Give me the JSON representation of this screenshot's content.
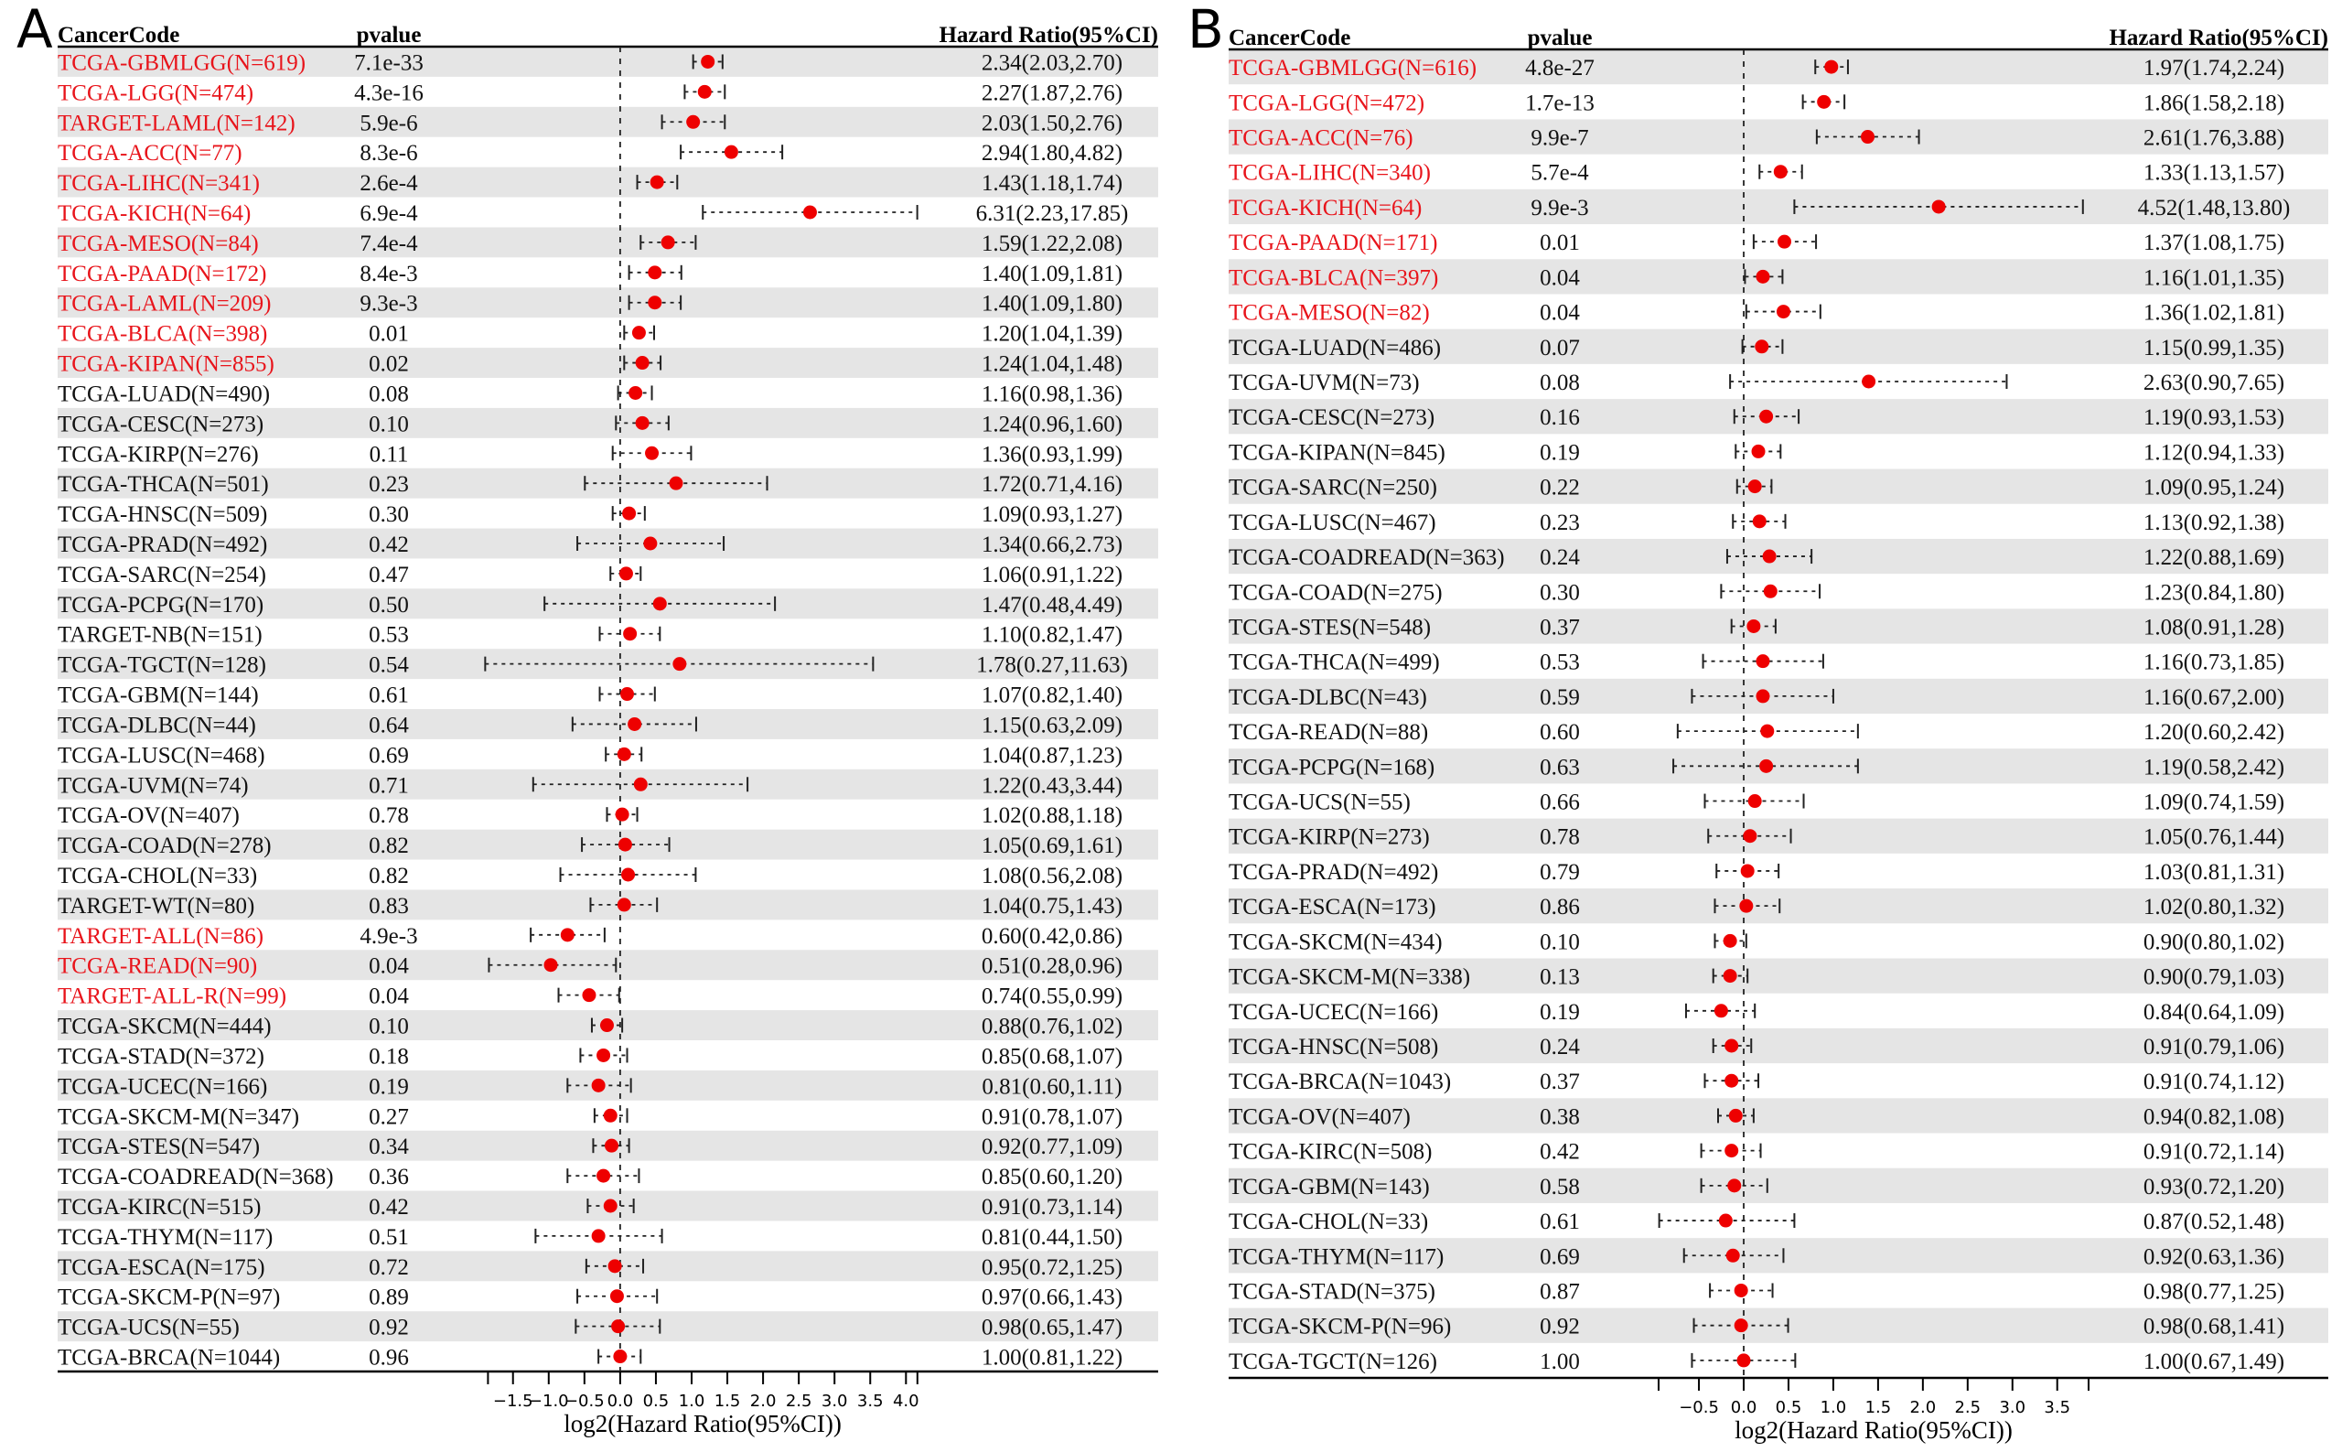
{
  "chart_data": [
    {
      "type": "forest",
      "panel_label": "A",
      "columns": {
        "code": "CancerCode",
        "pvalue": "pvalue",
        "hr": "Hazard Ratio(95%CI)"
      },
      "xlabel": "log2(Hazard Ratio(95%CI))",
      "xlim": [
        -1.85,
        4.16
      ],
      "xticks": [
        -1.5,
        -1.0,
        -0.5,
        0.0,
        0.5,
        1.0,
        1.5,
        2.0,
        2.5,
        3.0,
        3.5,
        4.0
      ],
      "xtick_labels": [
        "−1.5",
        "−1.0",
        "−0.5",
        "0.0",
        "0.5",
        "1.0",
        "1.5",
        "2.0",
        "2.5",
        "3.0",
        "3.5",
        "4.0"
      ],
      "reference_line": 0,
      "significant_color": "#e8141b",
      "point_color": "#ee0000",
      "band_color": "#e5e5e5",
      "rows": [
        {
          "code": "TCGA-GBMLGG(N=619)",
          "pvalue": "7.1e-33",
          "hr": 2.34,
          "lo": 2.03,
          "hi": 2.7,
          "label": "2.34(2.03,2.70)",
          "sig": true
        },
        {
          "code": "TCGA-LGG(N=474)",
          "pvalue": "4.3e-16",
          "hr": 2.27,
          "lo": 1.87,
          "hi": 2.76,
          "label": "2.27(1.87,2.76)",
          "sig": true
        },
        {
          "code": "TARGET-LAML(N=142)",
          "pvalue": "5.9e-6",
          "hr": 2.03,
          "lo": 1.5,
          "hi": 2.76,
          "label": "2.03(1.50,2.76)",
          "sig": true
        },
        {
          "code": "TCGA-ACC(N=77)",
          "pvalue": "8.3e-6",
          "hr": 2.94,
          "lo": 1.8,
          "hi": 4.82,
          "label": "2.94(1.80,4.82)",
          "sig": true
        },
        {
          "code": "TCGA-LIHC(N=341)",
          "pvalue": "2.6e-4",
          "hr": 1.43,
          "lo": 1.18,
          "hi": 1.74,
          "label": "1.43(1.18,1.74)",
          "sig": true
        },
        {
          "code": "TCGA-KICH(N=64)",
          "pvalue": "6.9e-4",
          "hr": 6.31,
          "lo": 2.23,
          "hi": 17.85,
          "label": "6.31(2.23,17.85)",
          "sig": true
        },
        {
          "code": "TCGA-MESO(N=84)",
          "pvalue": "7.4e-4",
          "hr": 1.59,
          "lo": 1.22,
          "hi": 2.08,
          "label": "1.59(1.22,2.08)",
          "sig": true
        },
        {
          "code": "TCGA-PAAD(N=172)",
          "pvalue": "8.4e-3",
          "hr": 1.4,
          "lo": 1.09,
          "hi": 1.81,
          "label": "1.40(1.09,1.81)",
          "sig": true
        },
        {
          "code": "TCGA-LAML(N=209)",
          "pvalue": "9.3e-3",
          "hr": 1.4,
          "lo": 1.09,
          "hi": 1.8,
          "label": "1.40(1.09,1.80)",
          "sig": true
        },
        {
          "code": "TCGA-BLCA(N=398)",
          "pvalue": "0.01",
          "hr": 1.2,
          "lo": 1.04,
          "hi": 1.39,
          "label": "1.20(1.04,1.39)",
          "sig": true
        },
        {
          "code": "TCGA-KIPAN(N=855)",
          "pvalue": "0.02",
          "hr": 1.24,
          "lo": 1.04,
          "hi": 1.48,
          "label": "1.24(1.04,1.48)",
          "sig": true
        },
        {
          "code": "TCGA-LUAD(N=490)",
          "pvalue": "0.08",
          "hr": 1.16,
          "lo": 0.98,
          "hi": 1.36,
          "label": "1.16(0.98,1.36)",
          "sig": false
        },
        {
          "code": "TCGA-CESC(N=273)",
          "pvalue": "0.10",
          "hr": 1.24,
          "lo": 0.96,
          "hi": 1.6,
          "label": "1.24(0.96,1.60)",
          "sig": false
        },
        {
          "code": "TCGA-KIRP(N=276)",
          "pvalue": "0.11",
          "hr": 1.36,
          "lo": 0.93,
          "hi": 1.99,
          "label": "1.36(0.93,1.99)",
          "sig": false
        },
        {
          "code": "TCGA-THCA(N=501)",
          "pvalue": "0.23",
          "hr": 1.72,
          "lo": 0.71,
          "hi": 4.16,
          "label": "1.72(0.71,4.16)",
          "sig": false
        },
        {
          "code": "TCGA-HNSC(N=509)",
          "pvalue": "0.30",
          "hr": 1.09,
          "lo": 0.93,
          "hi": 1.27,
          "label": "1.09(0.93,1.27)",
          "sig": false
        },
        {
          "code": "TCGA-PRAD(N=492)",
          "pvalue": "0.42",
          "hr": 1.34,
          "lo": 0.66,
          "hi": 2.73,
          "label": "1.34(0.66,2.73)",
          "sig": false
        },
        {
          "code": "TCGA-SARC(N=254)",
          "pvalue": "0.47",
          "hr": 1.06,
          "lo": 0.91,
          "hi": 1.22,
          "label": "1.06(0.91,1.22)",
          "sig": false
        },
        {
          "code": "TCGA-PCPG(N=170)",
          "pvalue": "0.50",
          "hr": 1.47,
          "lo": 0.48,
          "hi": 4.49,
          "label": "1.47(0.48,4.49)",
          "sig": false
        },
        {
          "code": "TARGET-NB(N=151)",
          "pvalue": "0.53",
          "hr": 1.1,
          "lo": 0.82,
          "hi": 1.47,
          "label": "1.10(0.82,1.47)",
          "sig": false
        },
        {
          "code": "TCGA-TGCT(N=128)",
          "pvalue": "0.54",
          "hr": 1.78,
          "lo": 0.27,
          "hi": 11.63,
          "label": "1.78(0.27,11.63)",
          "sig": false
        },
        {
          "code": "TCGA-GBM(N=144)",
          "pvalue": "0.61",
          "hr": 1.07,
          "lo": 0.82,
          "hi": 1.4,
          "label": "1.07(0.82,1.40)",
          "sig": false
        },
        {
          "code": "TCGA-DLBC(N=44)",
          "pvalue": "0.64",
          "hr": 1.15,
          "lo": 0.63,
          "hi": 2.09,
          "label": "1.15(0.63,2.09)",
          "sig": false
        },
        {
          "code": "TCGA-LUSC(N=468)",
          "pvalue": "0.69",
          "hr": 1.04,
          "lo": 0.87,
          "hi": 1.23,
          "label": "1.04(0.87,1.23)",
          "sig": false
        },
        {
          "code": "TCGA-UVM(N=74)",
          "pvalue": "0.71",
          "hr": 1.22,
          "lo": 0.43,
          "hi": 3.44,
          "label": "1.22(0.43,3.44)",
          "sig": false
        },
        {
          "code": "TCGA-OV(N=407)",
          "pvalue": "0.78",
          "hr": 1.02,
          "lo": 0.88,
          "hi": 1.18,
          "label": "1.02(0.88,1.18)",
          "sig": false
        },
        {
          "code": "TCGA-COAD(N=278)",
          "pvalue": "0.82",
          "hr": 1.05,
          "lo": 0.69,
          "hi": 1.61,
          "label": "1.05(0.69,1.61)",
          "sig": false
        },
        {
          "code": "TCGA-CHOL(N=33)",
          "pvalue": "0.82",
          "hr": 1.08,
          "lo": 0.56,
          "hi": 2.08,
          "label": "1.08(0.56,2.08)",
          "sig": false
        },
        {
          "code": "TARGET-WT(N=80)",
          "pvalue": "0.83",
          "hr": 1.04,
          "lo": 0.75,
          "hi": 1.43,
          "label": "1.04(0.75,1.43)",
          "sig": false
        },
        {
          "code": "TARGET-ALL(N=86)",
          "pvalue": "4.9e-3",
          "hr": 0.6,
          "lo": 0.42,
          "hi": 0.86,
          "label": "0.60(0.42,0.86)",
          "sig": true
        },
        {
          "code": "TCGA-READ(N=90)",
          "pvalue": "0.04",
          "hr": 0.51,
          "lo": 0.28,
          "hi": 0.96,
          "label": "0.51(0.28,0.96)",
          "sig": true
        },
        {
          "code": "TARGET-ALL-R(N=99)",
          "pvalue": "0.04",
          "hr": 0.74,
          "lo": 0.55,
          "hi": 0.99,
          "label": "0.74(0.55,0.99)",
          "sig": true
        },
        {
          "code": "TCGA-SKCM(N=444)",
          "pvalue": "0.10",
          "hr": 0.88,
          "lo": 0.76,
          "hi": 1.02,
          "label": "0.88(0.76,1.02)",
          "sig": false
        },
        {
          "code": "TCGA-STAD(N=372)",
          "pvalue": "0.18",
          "hr": 0.85,
          "lo": 0.68,
          "hi": 1.07,
          "label": "0.85(0.68,1.07)",
          "sig": false
        },
        {
          "code": "TCGA-UCEC(N=166)",
          "pvalue": "0.19",
          "hr": 0.81,
          "lo": 0.6,
          "hi": 1.11,
          "label": "0.81(0.60,1.11)",
          "sig": false
        },
        {
          "code": "TCGA-SKCM-M(N=347)",
          "pvalue": "0.27",
          "hr": 0.91,
          "lo": 0.78,
          "hi": 1.07,
          "label": "0.91(0.78,1.07)",
          "sig": false
        },
        {
          "code": "TCGA-STES(N=547)",
          "pvalue": "0.34",
          "hr": 0.92,
          "lo": 0.77,
          "hi": 1.09,
          "label": "0.92(0.77,1.09)",
          "sig": false
        },
        {
          "code": "TCGA-COADREAD(N=368)",
          "pvalue": "0.36",
          "hr": 0.85,
          "lo": 0.6,
          "hi": 1.2,
          "label": "0.85(0.60,1.20)",
          "sig": false
        },
        {
          "code": "TCGA-KIRC(N=515)",
          "pvalue": "0.42",
          "hr": 0.91,
          "lo": 0.73,
          "hi": 1.14,
          "label": "0.91(0.73,1.14)",
          "sig": false
        },
        {
          "code": "TCGA-THYM(N=117)",
          "pvalue": "0.51",
          "hr": 0.81,
          "lo": 0.44,
          "hi": 1.5,
          "label": "0.81(0.44,1.50)",
          "sig": false
        },
        {
          "code": "TCGA-ESCA(N=175)",
          "pvalue": "0.72",
          "hr": 0.95,
          "lo": 0.72,
          "hi": 1.25,
          "label": "0.95(0.72,1.25)",
          "sig": false
        },
        {
          "code": "TCGA-SKCM-P(N=97)",
          "pvalue": "0.89",
          "hr": 0.97,
          "lo": 0.66,
          "hi": 1.43,
          "label": "0.97(0.66,1.43)",
          "sig": false
        },
        {
          "code": "TCGA-UCS(N=55)",
          "pvalue": "0.92",
          "hr": 0.98,
          "lo": 0.65,
          "hi": 1.47,
          "label": "0.98(0.65,1.47)",
          "sig": false
        },
        {
          "code": "TCGA-BRCA(N=1044)",
          "pvalue": "0.96",
          "hr": 1.0,
          "lo": 0.81,
          "hi": 1.22,
          "label": "1.00(0.81,1.22)",
          "sig": false
        }
      ]
    },
    {
      "type": "forest",
      "panel_label": "B",
      "columns": {
        "code": "CancerCode",
        "pvalue": "pvalue",
        "hr": "Hazard Ratio(95%CI)"
      },
      "xlabel": "log2(Hazard Ratio(95%CI))",
      "xlim": [
        -0.95,
        3.85
      ],
      "xticks": [
        -0.5,
        0.0,
        0.5,
        1.0,
        1.5,
        2.0,
        2.5,
        3.0,
        3.5
      ],
      "xtick_labels": [
        "−0.5",
        "0.0",
        "0.5",
        "1.0",
        "1.5",
        "2.0",
        "2.5",
        "3.0",
        "3.5"
      ],
      "reference_line": 0,
      "significant_color": "#e8141b",
      "point_color": "#ee0000",
      "band_color": "#e5e5e5",
      "rows": [
        {
          "code": "TCGA-GBMLGG(N=616)",
          "pvalue": "4.8e-27",
          "hr": 1.97,
          "lo": 1.74,
          "hi": 2.24,
          "label": "1.97(1.74,2.24)",
          "sig": true
        },
        {
          "code": "TCGA-LGG(N=472)",
          "pvalue": "1.7e-13",
          "hr": 1.86,
          "lo": 1.58,
          "hi": 2.18,
          "label": "1.86(1.58,2.18)",
          "sig": true
        },
        {
          "code": "TCGA-ACC(N=76)",
          "pvalue": "9.9e-7",
          "hr": 2.61,
          "lo": 1.76,
          "hi": 3.88,
          "label": "2.61(1.76,3.88)",
          "sig": true
        },
        {
          "code": "TCGA-LIHC(N=340)",
          "pvalue": "5.7e-4",
          "hr": 1.33,
          "lo": 1.13,
          "hi": 1.57,
          "label": "1.33(1.13,1.57)",
          "sig": true
        },
        {
          "code": "TCGA-KICH(N=64)",
          "pvalue": "9.9e-3",
          "hr": 4.52,
          "lo": 1.48,
          "hi": 13.8,
          "label": "4.52(1.48,13.80)",
          "sig": true
        },
        {
          "code": "TCGA-PAAD(N=171)",
          "pvalue": "0.01",
          "hr": 1.37,
          "lo": 1.08,
          "hi": 1.75,
          "label": "1.37(1.08,1.75)",
          "sig": true
        },
        {
          "code": "TCGA-BLCA(N=397)",
          "pvalue": "0.04",
          "hr": 1.16,
          "lo": 1.01,
          "hi": 1.35,
          "label": "1.16(1.01,1.35)",
          "sig": true
        },
        {
          "code": "TCGA-MESO(N=82)",
          "pvalue": "0.04",
          "hr": 1.36,
          "lo": 1.02,
          "hi": 1.81,
          "label": "1.36(1.02,1.81)",
          "sig": true
        },
        {
          "code": "TCGA-LUAD(N=486)",
          "pvalue": "0.07",
          "hr": 1.15,
          "lo": 0.99,
          "hi": 1.35,
          "label": "1.15(0.99,1.35)",
          "sig": false
        },
        {
          "code": "TCGA-UVM(N=73)",
          "pvalue": "0.08",
          "hr": 2.63,
          "lo": 0.9,
          "hi": 7.65,
          "label": "2.63(0.90,7.65)",
          "sig": false
        },
        {
          "code": "TCGA-CESC(N=273)",
          "pvalue": "0.16",
          "hr": 1.19,
          "lo": 0.93,
          "hi": 1.53,
          "label": "1.19(0.93,1.53)",
          "sig": false
        },
        {
          "code": "TCGA-KIPAN(N=845)",
          "pvalue": "0.19",
          "hr": 1.12,
          "lo": 0.94,
          "hi": 1.33,
          "label": "1.12(0.94,1.33)",
          "sig": false
        },
        {
          "code": "TCGA-SARC(N=250)",
          "pvalue": "0.22",
          "hr": 1.09,
          "lo": 0.95,
          "hi": 1.24,
          "label": "1.09(0.95,1.24)",
          "sig": false
        },
        {
          "code": "TCGA-LUSC(N=467)",
          "pvalue": "0.23",
          "hr": 1.13,
          "lo": 0.92,
          "hi": 1.38,
          "label": "1.13(0.92,1.38)",
          "sig": false
        },
        {
          "code": "TCGA-COADREAD(N=363)",
          "pvalue": "0.24",
          "hr": 1.22,
          "lo": 0.88,
          "hi": 1.69,
          "label": "1.22(0.88,1.69)",
          "sig": false
        },
        {
          "code": "TCGA-COAD(N=275)",
          "pvalue": "0.30",
          "hr": 1.23,
          "lo": 0.84,
          "hi": 1.8,
          "label": "1.23(0.84,1.80)",
          "sig": false
        },
        {
          "code": "TCGA-STES(N=548)",
          "pvalue": "0.37",
          "hr": 1.08,
          "lo": 0.91,
          "hi": 1.28,
          "label": "1.08(0.91,1.28)",
          "sig": false
        },
        {
          "code": "TCGA-THCA(N=499)",
          "pvalue": "0.53",
          "hr": 1.16,
          "lo": 0.73,
          "hi": 1.85,
          "label": "1.16(0.73,1.85)",
          "sig": false
        },
        {
          "code": "TCGA-DLBC(N=43)",
          "pvalue": "0.59",
          "hr": 1.16,
          "lo": 0.67,
          "hi": 2.0,
          "label": "1.16(0.67,2.00)",
          "sig": false
        },
        {
          "code": "TCGA-READ(N=88)",
          "pvalue": "0.60",
          "hr": 1.2,
          "lo": 0.6,
          "hi": 2.42,
          "label": "1.20(0.60,2.42)",
          "sig": false
        },
        {
          "code": "TCGA-PCPG(N=168)",
          "pvalue": "0.63",
          "hr": 1.19,
          "lo": 0.58,
          "hi": 2.42,
          "label": "1.19(0.58,2.42)",
          "sig": false
        },
        {
          "code": "TCGA-UCS(N=55)",
          "pvalue": "0.66",
          "hr": 1.09,
          "lo": 0.74,
          "hi": 1.59,
          "label": "1.09(0.74,1.59)",
          "sig": false
        },
        {
          "code": "TCGA-KIRP(N=273)",
          "pvalue": "0.78",
          "hr": 1.05,
          "lo": 0.76,
          "hi": 1.44,
          "label": "1.05(0.76,1.44)",
          "sig": false
        },
        {
          "code": "TCGA-PRAD(N=492)",
          "pvalue": "0.79",
          "hr": 1.03,
          "lo": 0.81,
          "hi": 1.31,
          "label": "1.03(0.81,1.31)",
          "sig": false
        },
        {
          "code": "TCGA-ESCA(N=173)",
          "pvalue": "0.86",
          "hr": 1.02,
          "lo": 0.8,
          "hi": 1.32,
          "label": "1.02(0.80,1.32)",
          "sig": false
        },
        {
          "code": "TCGA-SKCM(N=434)",
          "pvalue": "0.10",
          "hr": 0.9,
          "lo": 0.8,
          "hi": 1.02,
          "label": "0.90(0.80,1.02)",
          "sig": false
        },
        {
          "code": "TCGA-SKCM-M(N=338)",
          "pvalue": "0.13",
          "hr": 0.9,
          "lo": 0.79,
          "hi": 1.03,
          "label": "0.90(0.79,1.03)",
          "sig": false
        },
        {
          "code": "TCGA-UCEC(N=166)",
          "pvalue": "0.19",
          "hr": 0.84,
          "lo": 0.64,
          "hi": 1.09,
          "label": "0.84(0.64,1.09)",
          "sig": false
        },
        {
          "code": "TCGA-HNSC(N=508)",
          "pvalue": "0.24",
          "hr": 0.91,
          "lo": 0.79,
          "hi": 1.06,
          "label": "0.91(0.79,1.06)",
          "sig": false
        },
        {
          "code": "TCGA-BRCA(N=1043)",
          "pvalue": "0.37",
          "hr": 0.91,
          "lo": 0.74,
          "hi": 1.12,
          "label": "0.91(0.74,1.12)",
          "sig": false
        },
        {
          "code": "TCGA-OV(N=407)",
          "pvalue": "0.38",
          "hr": 0.94,
          "lo": 0.82,
          "hi": 1.08,
          "label": "0.94(0.82,1.08)",
          "sig": false
        },
        {
          "code": "TCGA-KIRC(N=508)",
          "pvalue": "0.42",
          "hr": 0.91,
          "lo": 0.72,
          "hi": 1.14,
          "label": "0.91(0.72,1.14)",
          "sig": false
        },
        {
          "code": "TCGA-GBM(N=143)",
          "pvalue": "0.58",
          "hr": 0.93,
          "lo": 0.72,
          "hi": 1.2,
          "label": "0.93(0.72,1.20)",
          "sig": false
        },
        {
          "code": "TCGA-CHOL(N=33)",
          "pvalue": "0.61",
          "hr": 0.87,
          "lo": 0.52,
          "hi": 1.48,
          "label": "0.87(0.52,1.48)",
          "sig": false
        },
        {
          "code": "TCGA-THYM(N=117)",
          "pvalue": "0.69",
          "hr": 0.92,
          "lo": 0.63,
          "hi": 1.36,
          "label": "0.92(0.63,1.36)",
          "sig": false
        },
        {
          "code": "TCGA-STAD(N=375)",
          "pvalue": "0.87",
          "hr": 0.98,
          "lo": 0.77,
          "hi": 1.25,
          "label": "0.98(0.77,1.25)",
          "sig": false
        },
        {
          "code": "TCGA-SKCM-P(N=96)",
          "pvalue": "0.92",
          "hr": 0.98,
          "lo": 0.68,
          "hi": 1.41,
          "label": "0.98(0.68,1.41)",
          "sig": false
        },
        {
          "code": "TCGA-TGCT(N=126)",
          "pvalue": "1.00",
          "hr": 1.0,
          "lo": 0.67,
          "hi": 1.49,
          "label": "1.00(0.67,1.49)",
          "sig": false
        }
      ]
    }
  ]
}
